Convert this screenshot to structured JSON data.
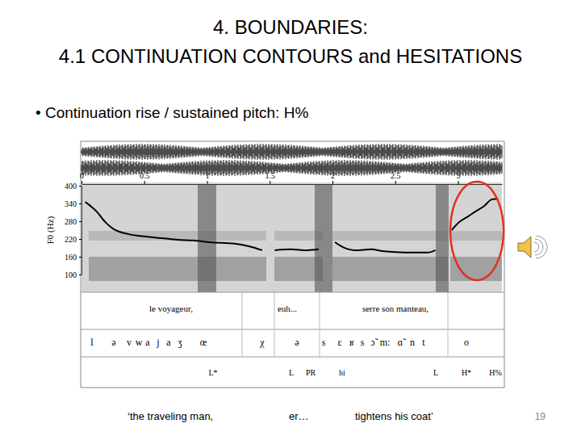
{
  "slide": {
    "title": [
      "4. BOUNDARIES:",
      "4.1 CONTINUATION CONTOURS and HESITATIONS"
    ],
    "bullet": "• Continuation rise / sustained pitch: H%",
    "gloss": [
      "‘the traveling man,",
      "er…",
      "tightens his coat’"
    ],
    "page": 19
  },
  "chart_data": {
    "type": "line",
    "y_label": "F0 (Hz)",
    "x": [
      0.03,
      0.12,
      0.19,
      0.25,
      0.38,
      0.51,
      0.64,
      0.77,
      0.89,
      1.02,
      1.22,
      1.34,
      1.44,
      1.49,
      1.54,
      1.67,
      1.8,
      1.89,
      1.95,
      2.02,
      2.08,
      2.18,
      2.31,
      2.4,
      2.5,
      2.63,
      2.76,
      2.82,
      2.88,
      2.95,
      3.01,
      3.08,
      3.14,
      3.21,
      3.27,
      3.32
    ],
    "series": [
      {
        "color": "#000000",
        "values": [
          345,
          313,
          277,
          255,
          236,
          228,
          223,
          217,
          215,
          209,
          204,
          195,
          182,
          null,
          182,
          185,
          182,
          185,
          null,
          209,
          193,
          182,
          185,
          179,
          176,
          174,
          174,
          182,
          null,
          250,
          277,
          296,
          313,
          332,
          354,
          356
        ]
      }
    ],
    "xlim": [
      0,
      3.35
    ],
    "xticks": [
      0,
      0.5,
      1,
      1.5,
      2,
      2.5,
      3
    ],
    "ylim": [
      100,
      400
    ],
    "yticks": [
      100,
      160,
      220,
      280,
      340,
      400
    ],
    "annotations": {
      "words": [
        "le voyageur,",
        "euh...",
        "serre son manteau,"
      ],
      "phones": [
        "l",
        "ə",
        "v",
        "w",
        "a",
        "j",
        "a",
        "ʒ",
        "œ",
        "χ",
        "ə",
        "s",
        "ɛ",
        "ʁ",
        "s",
        "ɔ̃",
        "m:",
        "ɑ̃",
        "n",
        "t",
        "o"
      ],
      "tones": [
        "L*",
        "L",
        "PR",
        "hi",
        "L",
        "H*",
        "H%"
      ]
    }
  }
}
